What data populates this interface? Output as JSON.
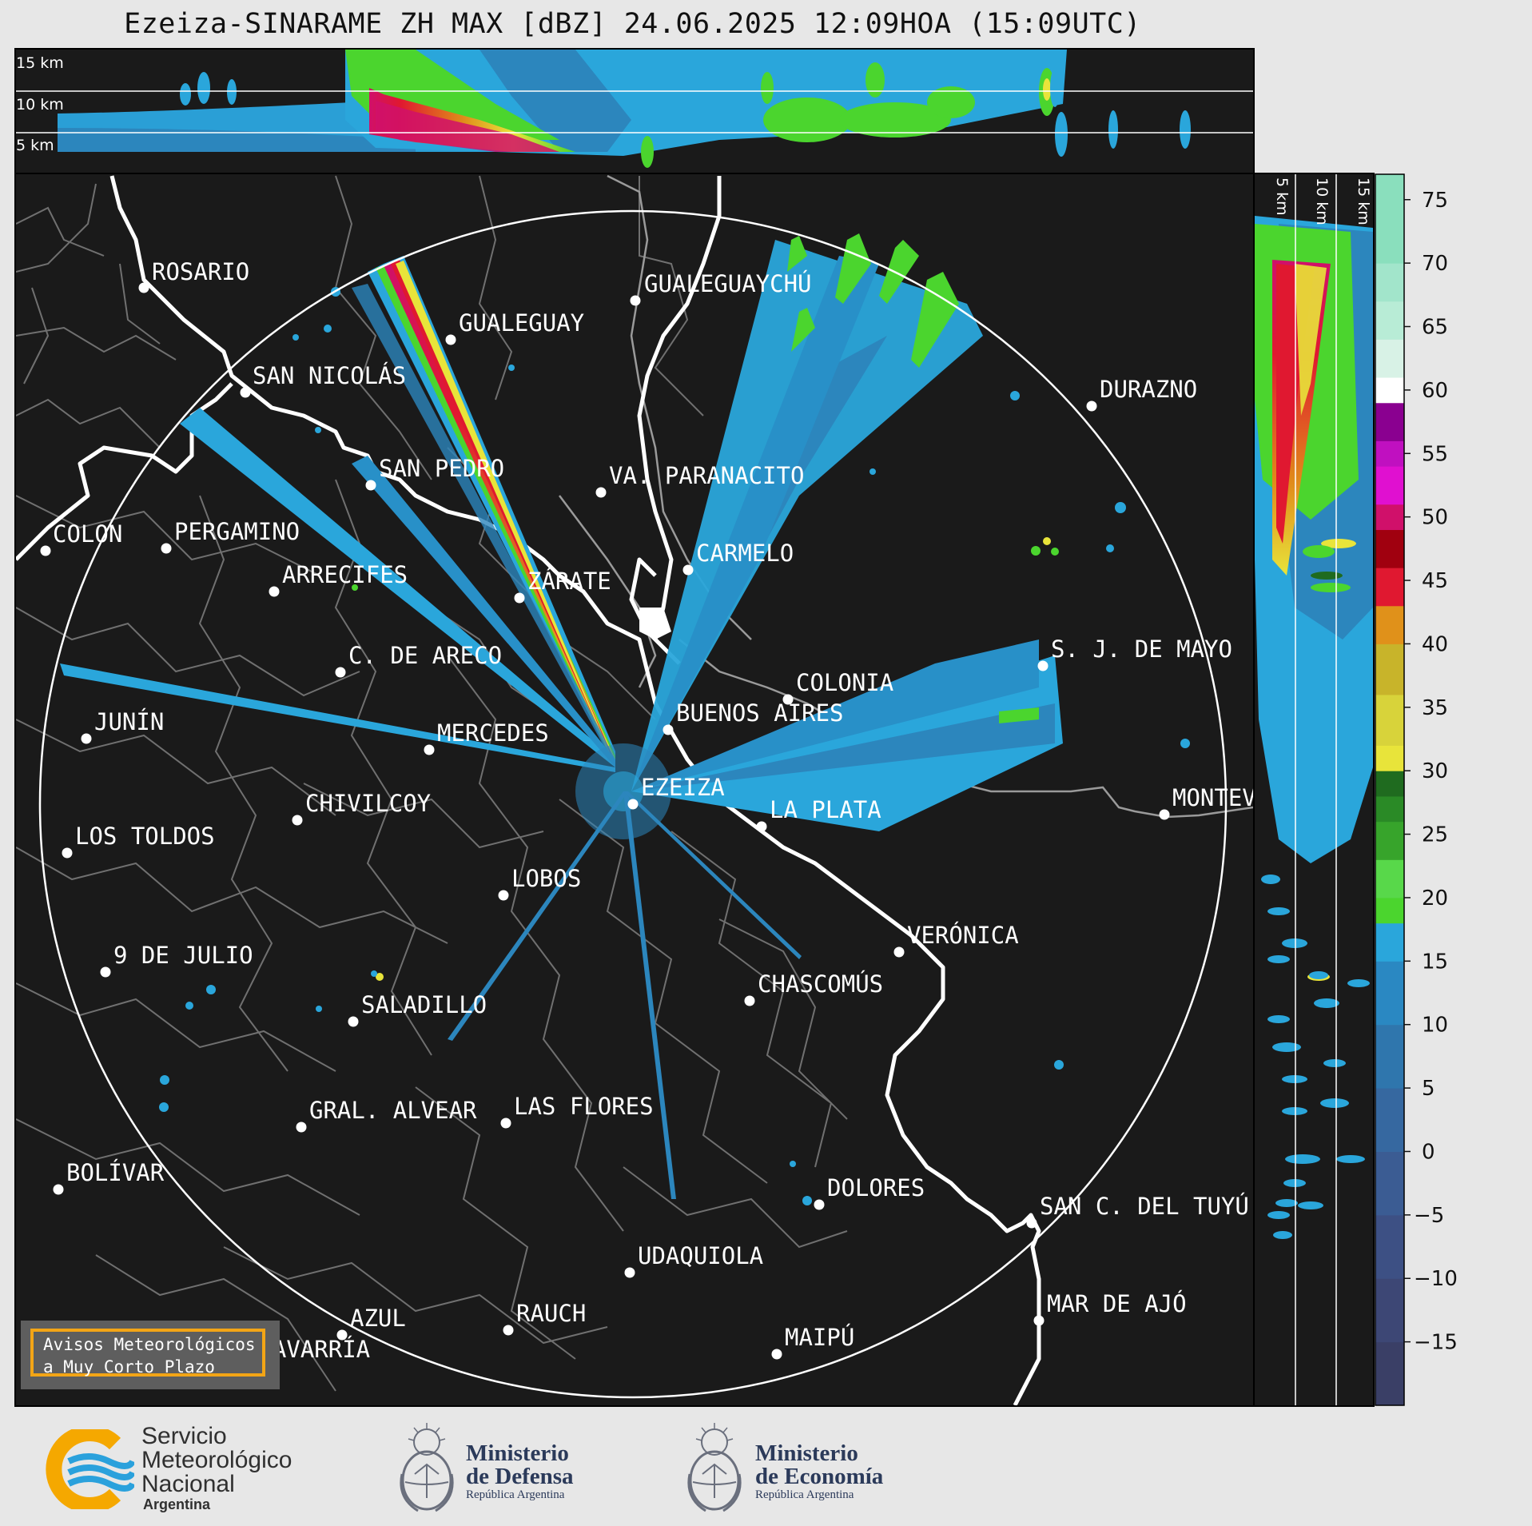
{
  "title": "Ezeiza-SINARAME ZH MAX [dBZ] 24.06.2025 12:09HOA (15:09UTC)",
  "top_panel": {
    "height_labels": [
      "15 km",
      "10 km",
      "5 km"
    ]
  },
  "side_panel": {
    "height_labels": [
      "5 km",
      "10 km",
      "15 km"
    ]
  },
  "colorbar": {
    "ticks": [
      "75",
      "70",
      "65",
      "60",
      "55",
      "50",
      "45",
      "40",
      "35",
      "30",
      "25",
      "20",
      "15",
      "10",
      "5",
      "0",
      "−5",
      "−10",
      "−15"
    ],
    "colors": {
      "low": "#3b4170",
      "blue": "#2f7fb5",
      "cyan": "#2aa6db",
      "green": "#4bd52e",
      "darkgreen": "#1f6b1f",
      "yellow": "#e8e43a",
      "orange": "#e0911a",
      "red": "#e01830",
      "darkred": "#a0000f",
      "magenta": "#e010d0",
      "purple": "#8a0090",
      "white": "#ffffff",
      "mint": "#8adfbd"
    }
  },
  "map": {
    "background": "#1a1a1a",
    "cities": [
      {
        "name": "ROSARIO",
        "id": "rosario"
      },
      {
        "name": "GUALEGUAYCHÚ",
        "id": "gualeguaychu"
      },
      {
        "name": "GUALEGUAY",
        "id": "gualeguay"
      },
      {
        "name": "SAN NICOLÁS",
        "id": "san-nicolas"
      },
      {
        "name": "DURAZNO",
        "id": "durazno"
      },
      {
        "name": "SAN PEDRO",
        "id": "san-pedro"
      },
      {
        "name": "VA. PARANACITO",
        "id": "va-paranacito"
      },
      {
        "name": "COLON",
        "id": "colon"
      },
      {
        "name": "PERGAMINO",
        "id": "pergamino"
      },
      {
        "name": "CARMELO",
        "id": "carmelo"
      },
      {
        "name": "ARRECIFES",
        "id": "arrecifes"
      },
      {
        "name": "ZÁRATE",
        "id": "zarate"
      },
      {
        "name": "S. J. DE MAYO",
        "id": "sj-de-mayo"
      },
      {
        "name": "C. DE ARECO",
        "id": "c-de-areco"
      },
      {
        "name": "COLONIA",
        "id": "colonia"
      },
      {
        "name": "JUNÍN",
        "id": "junin"
      },
      {
        "name": "BUENOS AIRES",
        "id": "buenos-aires"
      },
      {
        "name": "MERCEDES",
        "id": "mercedes"
      },
      {
        "name": "EZEIZA",
        "id": "ezeiza"
      },
      {
        "name": "MONTEVIDEO",
        "id": "montevideo"
      },
      {
        "name": "CHIVILCOY",
        "id": "chivilcoy"
      },
      {
        "name": "LA PLATA",
        "id": "la-plata"
      },
      {
        "name": "LOS TOLDOS",
        "id": "los-toldos"
      },
      {
        "name": "LOBOS",
        "id": "lobos"
      },
      {
        "name": "VERÓNICA",
        "id": "veronica"
      },
      {
        "name": "9 DE JULIO",
        "id": "9-de-julio"
      },
      {
        "name": "CHASCOMÚS",
        "id": "chascomus"
      },
      {
        "name": "SALADILLO",
        "id": "saladillo"
      },
      {
        "name": "GRAL. ALVEAR",
        "id": "gral-alvear"
      },
      {
        "name": "LAS FLORES",
        "id": "las-flores"
      },
      {
        "name": "BOLÍVAR",
        "id": "bolivar"
      },
      {
        "name": "DOLORES",
        "id": "dolores"
      },
      {
        "name": "SAN C. DEL TUYÚ",
        "id": "san-c-del-tuyu"
      },
      {
        "name": "UDAQUIOLA",
        "id": "udaquiola"
      },
      {
        "name": "AZUL",
        "id": "azul"
      },
      {
        "name": "RAUCH",
        "id": "rauch"
      },
      {
        "name": "MAR DE AJÓ",
        "id": "mar-de-ajo"
      },
      {
        "name": "OLAVARRÍA",
        "id": "olavarria"
      },
      {
        "name": "MAIPÚ",
        "id": "maipu"
      }
    ]
  },
  "badge": {
    "line1": "Avisos Meteorológicos",
    "line2": "a Muy Corto Plazo"
  },
  "footer": {
    "smn": {
      "line1": "Servicio",
      "line2": "Meteorológico",
      "line3": "Nacional",
      "sub": "Argentina"
    },
    "defensa": {
      "line1": "Ministerio",
      "line2": "de Defensa",
      "sub": "República Argentina"
    },
    "economia": {
      "line1": "Ministerio",
      "line2": "de Economía",
      "sub": "República Argentina"
    }
  }
}
